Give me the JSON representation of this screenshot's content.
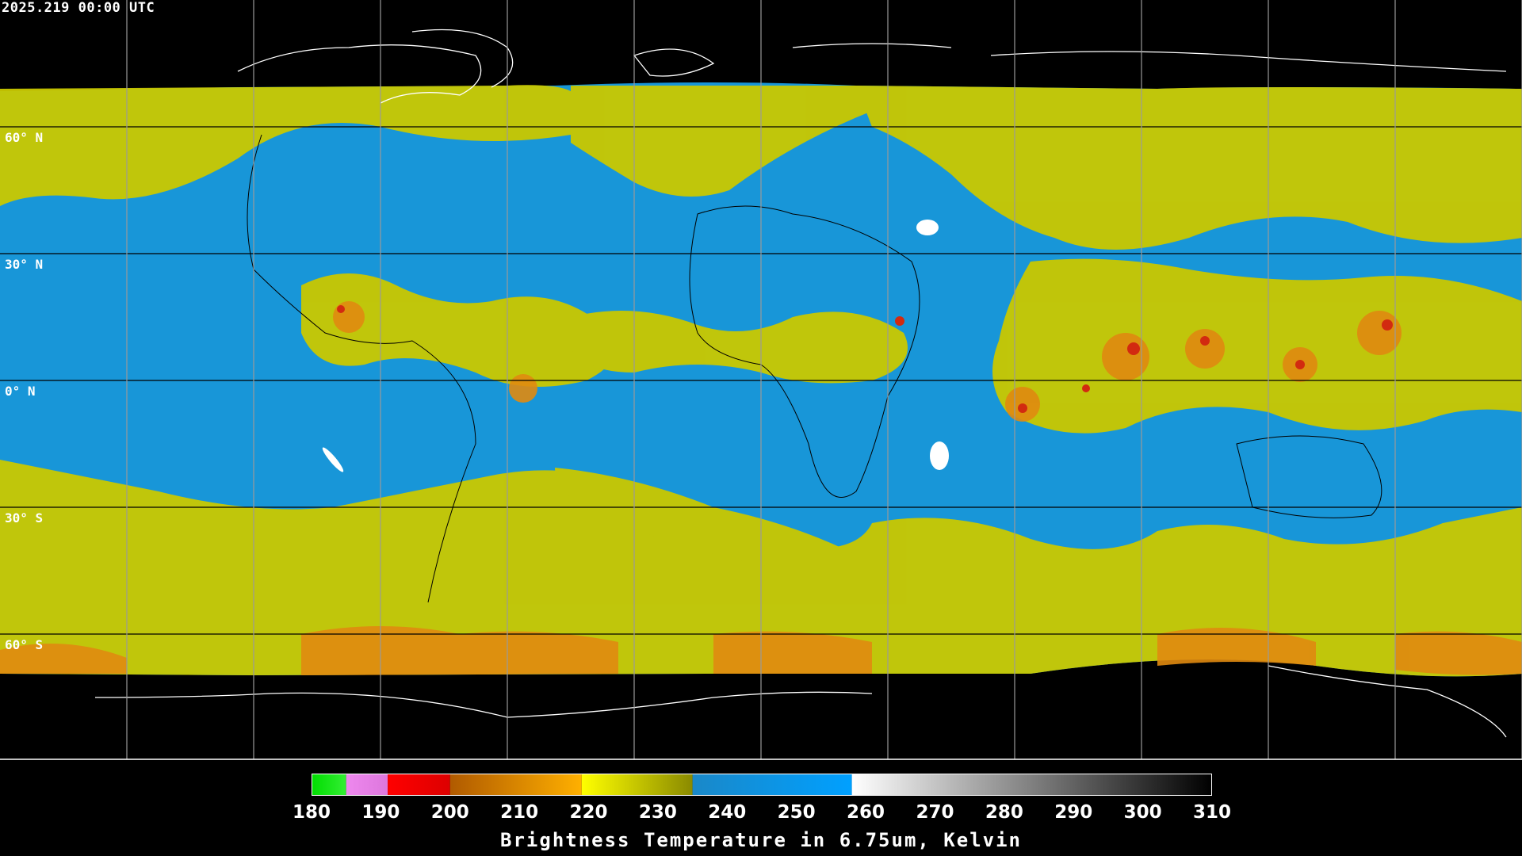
{
  "timestamp": "2025.219 00:00 UTC",
  "lat_labels": [
    "60° N",
    "30° N",
    "0° N",
    "30° S",
    "60° S"
  ],
  "colors": {
    "water_vapor_dry": "#1896d8",
    "water_vapor_moist": "#c9c800",
    "cold_cloud": "#e08a10",
    "very_cold": "#d22a10",
    "coastline": "#ffffff",
    "grid": "#000000",
    "background": "#000000"
  },
  "colorbar": {
    "min": 180,
    "max": 310,
    "tick_labels": [
      "180",
      "190",
      "200",
      "210",
      "220",
      "230",
      "240",
      "250",
      "260",
      "270",
      "280",
      "290",
      "300",
      "310"
    ],
    "title": "Brightness Temperature in 6.75um, Kelvin",
    "segments": [
      {
        "from": 180,
        "to": 185,
        "color_start": "#00dd00",
        "color_end": "#33ee33"
      },
      {
        "from": 185,
        "to": 191,
        "color_start": "#ee88ee",
        "color_end": "#dd77dd"
      },
      {
        "from": 191,
        "to": 200,
        "color_start": "#ff0000",
        "color_end": "#dd0000"
      },
      {
        "from": 200,
        "to": 219,
        "color_start": "#b05a00",
        "color_end": "#ffb000"
      },
      {
        "from": 219,
        "to": 235,
        "color_start": "#ffff00",
        "color_end": "#8a8a00"
      },
      {
        "from": 235,
        "to": 258,
        "color_start": "#1a88c8",
        "color_end": "#00a0ff"
      },
      {
        "from": 258,
        "to": 310,
        "color_start": "#ffffff",
        "color_end": "#000000"
      }
    ]
  }
}
